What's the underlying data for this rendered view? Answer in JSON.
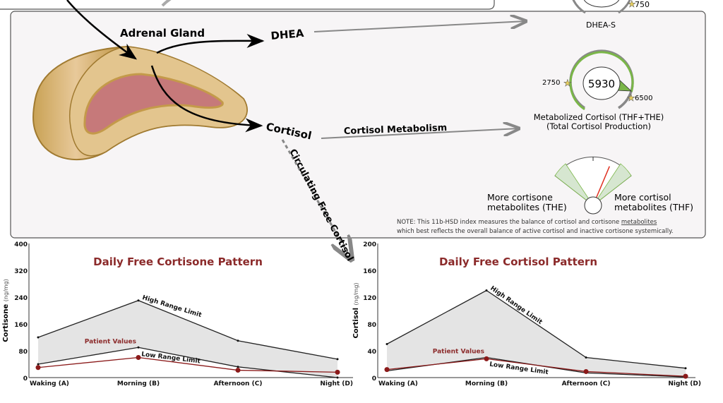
{
  "diagram": {
    "adrenal_label": "Adrenal Gland",
    "dhea_label": "DHEA",
    "cortisol_label": "Cortisol",
    "metabolism_label": "Cortisol Metabolism",
    "circulating_label": "Circulating Free Cortisol"
  },
  "dhea_gauge": {
    "title": "DHEA-S",
    "high_label": "750"
  },
  "cortisol_gauge": {
    "value": "5930",
    "low_label": "2750",
    "high_label": "6500",
    "title_line1": "Metabolized Cortisol (THF+THE)",
    "title_line2": "(Total Cortisol Production)",
    "fill_fraction": 0.86
  },
  "ratio_gauge": {
    "left_line1": "More cortisone",
    "left_line2": "metabolites (THE)",
    "right_line1": "More cortisol",
    "right_line2": "metabolites (THF)",
    "needle_position": 0.8
  },
  "note": {
    "line1_prefix": "NOTE: This 11b-HSD index measures the balance of cortisol and cortisone ",
    "line1_link": "metabolites",
    "line2": "which best reflects the overall balance of active cortisol and inactive cortisone systemically."
  },
  "colors": {
    "patient": "#8b1a1a",
    "range_fill": "#e4e4e4",
    "gauge_green": "#7ab648",
    "title": "#8b2a2a"
  },
  "chart_data": [
    {
      "type": "line",
      "title": "Daily Free Cortisone Pattern",
      "ylabel": "Cortisone",
      "yunit": "(ng/mg)",
      "categories": [
        "Waking (A)",
        "Morning (B)",
        "Afternoon (C)",
        "Night (D)"
      ],
      "ylim": [
        0,
        400
      ],
      "yticks": [
        "0",
        "80",
        "160",
        "240",
        "320",
        "400"
      ],
      "series": [
        {
          "name": "High Range Limit",
          "values": [
            120,
            230,
            110,
            55
          ]
        },
        {
          "name": "Low Range Limit",
          "values": [
            40,
            90,
            32,
            0
          ]
        },
        {
          "name": "Patient Values",
          "values": [
            30,
            60,
            22,
            16
          ]
        }
      ]
    },
    {
      "type": "line",
      "title": "Daily Free Cortisol Pattern",
      "ylabel": "Cortisol",
      "yunit": "(ng/mg)",
      "categories": [
        "Waking (A)",
        "Morning (B)",
        "Afternoon (C)",
        "Night (D)"
      ],
      "ylim": [
        0,
        200
      ],
      "yticks": [
        "0",
        "40",
        "80",
        "120",
        "160",
        "200"
      ],
      "series": [
        {
          "name": "High Range Limit",
          "values": [
            50,
            130,
            30,
            14
          ]
        },
        {
          "name": "Low Range Limit",
          "values": [
            10,
            30,
            7,
            1
          ]
        },
        {
          "name": "Patient Values",
          "values": [
            12,
            28,
            9,
            2
          ]
        }
      ]
    }
  ]
}
